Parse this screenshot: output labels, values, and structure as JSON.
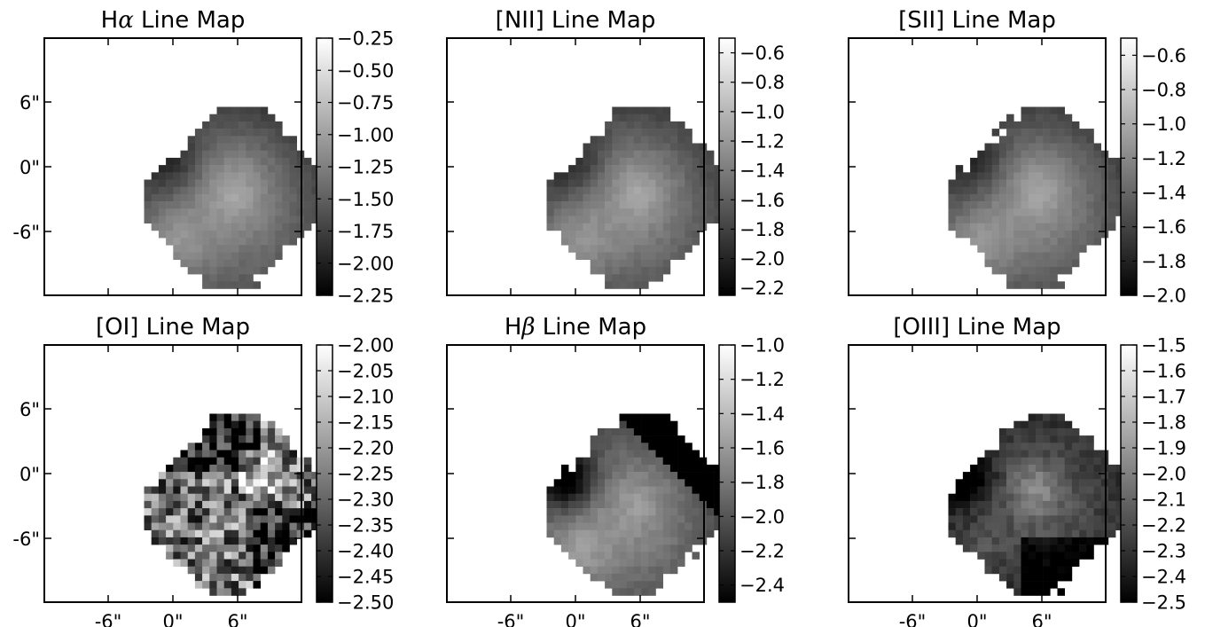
{
  "chart_data": [
    {
      "type": "heatmap",
      "title": "Hα Line Map",
      "title_parts": [
        {
          "t": "H"
        },
        {
          "t": "α",
          "italic": true
        },
        {
          "t": " Line Map"
        }
      ],
      "xticks": [],
      "yticks": [
        "6\"",
        "0\"",
        "-6\""
      ],
      "colorbar": {
        "vmin": -2.25,
        "vmax": -0.25,
        "ticks": [
          -0.25,
          -0.5,
          -0.75,
          -1.0,
          -1.25,
          -1.5,
          -1.75,
          -2.0,
          -2.25
        ],
        "tick_labels": [
          "−0.25",
          "−0.50",
          "−0.75",
          "−1.00",
          "−1.25",
          "−1.50",
          "−1.75",
          "−2.00",
          "−2.25"
        ]
      },
      "style": "smooth",
      "seed": 11
    },
    {
      "type": "heatmap",
      "title": "[NII] Line Map",
      "xticks": [],
      "yticks": [],
      "colorbar": {
        "vmin": -2.25,
        "vmax": -0.5,
        "ticks": [
          -0.6,
          -0.8,
          -1.0,
          -1.2,
          -1.4,
          -1.6,
          -1.8,
          -2.0,
          -2.2
        ],
        "tick_labels": [
          "−0.6",
          "−0.8",
          "−1.0",
          "−1.2",
          "−1.4",
          "−1.6",
          "−1.8",
          "−2.0",
          "−2.2"
        ]
      },
      "style": "smooth",
      "seed": 23
    },
    {
      "type": "heatmap",
      "title": "[SII] Line Map",
      "xticks": [],
      "yticks": [],
      "colorbar": {
        "vmin": -2.0,
        "vmax": -0.5,
        "ticks": [
          -0.6,
          -0.8,
          -1.0,
          -1.2,
          -1.4,
          -1.6,
          -1.8,
          -2.0
        ],
        "tick_labels": [
          "−0.6",
          "−0.8",
          "−1.0",
          "−1.2",
          "−1.4",
          "−1.6",
          "−1.8",
          "−2.0"
        ]
      },
      "style": "smooth",
      "seed": 37
    },
    {
      "type": "heatmap",
      "title": "[OI] Line Map",
      "xticks": [
        "-6\"",
        "0\"",
        "6\""
      ],
      "yticks": [
        "6\"",
        "0\"",
        "-6\""
      ],
      "colorbar": {
        "vmin": -2.5,
        "vmax": -2.0,
        "ticks": [
          -2.0,
          -2.05,
          -2.1,
          -2.15,
          -2.2,
          -2.25,
          -2.3,
          -2.35,
          -2.4,
          -2.45,
          -2.5
        ],
        "tick_labels": [
          "−2.00",
          "−2.05",
          "−2.10",
          "−2.15",
          "−2.20",
          "−2.25",
          "−2.30",
          "−2.35",
          "−2.40",
          "−2.45",
          "−2.50"
        ]
      },
      "style": "noisy",
      "seed": 41
    },
    {
      "type": "heatmap",
      "title": "Hβ Line Map",
      "title_parts": [
        {
          "t": "H"
        },
        {
          "t": "β",
          "italic": true
        },
        {
          "t": " Line Map"
        }
      ],
      "xticks": [
        "-6\"",
        "0\"",
        "6\""
      ],
      "yticks": [],
      "colorbar": {
        "vmin": -2.5,
        "vmax": -1.0,
        "ticks": [
          -1.0,
          -1.2,
          -1.4,
          -1.6,
          -1.8,
          -2.0,
          -2.2,
          -2.4
        ],
        "tick_labels": [
          "−1.0",
          "−1.2",
          "−1.4",
          "−1.6",
          "−1.8",
          "−2.0",
          "−2.2",
          "−2.4"
        ]
      },
      "style": "dark",
      "seed": 53
    },
    {
      "type": "heatmap",
      "title": "[OIII] Line Map",
      "xticks": [
        "-6\"",
        "0\"",
        "6\""
      ],
      "yticks": [],
      "colorbar": {
        "vmin": -2.5,
        "vmax": -1.5,
        "ticks": [
          -1.5,
          -1.6,
          -1.7,
          -1.8,
          -1.9,
          -2.0,
          -2.1,
          -2.2,
          -2.3,
          -2.4,
          -2.5
        ],
        "tick_labels": [
          "−1.5",
          "−1.6",
          "−1.7",
          "−1.8",
          "−1.9",
          "−2.0",
          "−2.1",
          "−2.2",
          "−2.3",
          "−2.4",
          "−2.5"
        ]
      },
      "style": "oiii",
      "seed": 67
    }
  ]
}
